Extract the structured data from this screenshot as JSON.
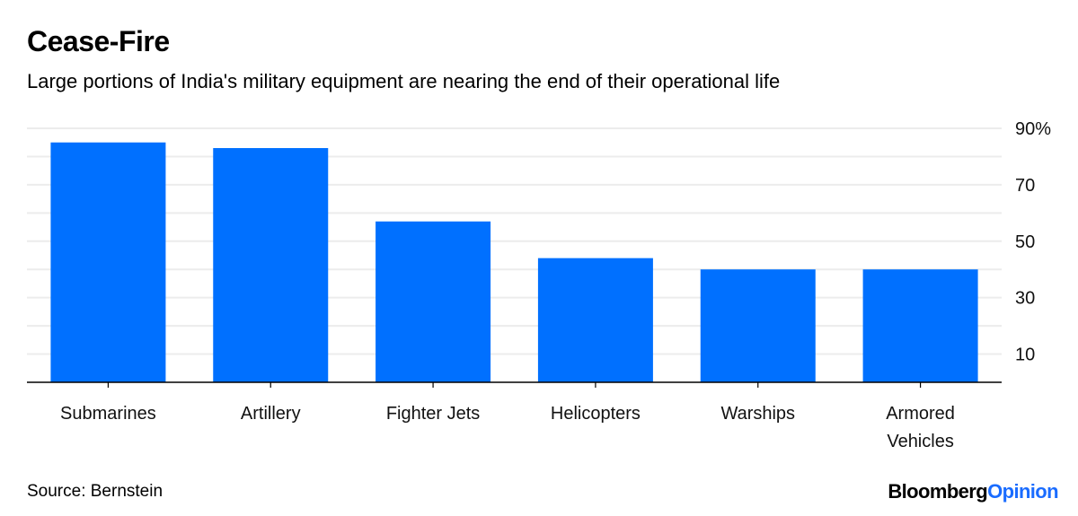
{
  "header": {
    "title": "Cease-Fire",
    "subtitle": "Large portions of India's military equipment are nearing the end of their operational life"
  },
  "footer": {
    "source": "Source: Bernstein",
    "brand_primary": "Bloomberg",
    "brand_secondary": "Opinion"
  },
  "colors": {
    "bar": "#0070ff",
    "gridline": "#ececec",
    "axis": "#000000",
    "brand_accent": "#1a6cff"
  },
  "chart_data": {
    "type": "bar",
    "title": "Cease-Fire",
    "subtitle": "Large portions of India's military equipment are nearing the end of their operational life",
    "xlabel": "",
    "ylabel": "",
    "categories": [
      "Submarines",
      "Artillery",
      "Fighter Jets",
      "Helicopters",
      "Warships",
      "Armored Vehicles"
    ],
    "category_lines": [
      [
        "Submarines"
      ],
      [
        "Artillery"
      ],
      [
        "Fighter Jets"
      ],
      [
        "Helicopters"
      ],
      [
        "Warships"
      ],
      [
        "Armored",
        "Vehicles"
      ]
    ],
    "values": [
      85,
      83,
      57,
      44,
      40,
      40
    ],
    "unit": "%",
    "ylim": [
      0,
      90
    ],
    "yticks": [
      10,
      30,
      50,
      70,
      90
    ],
    "ytick_labels": [
      "10",
      "30",
      "50",
      "70",
      "90%"
    ],
    "gridlines": [
      10,
      20,
      30,
      40,
      50,
      60,
      70,
      80,
      90
    ],
    "grid": true,
    "y_axis_side": "right",
    "legend": "none",
    "source": "Source: Bernstein"
  }
}
